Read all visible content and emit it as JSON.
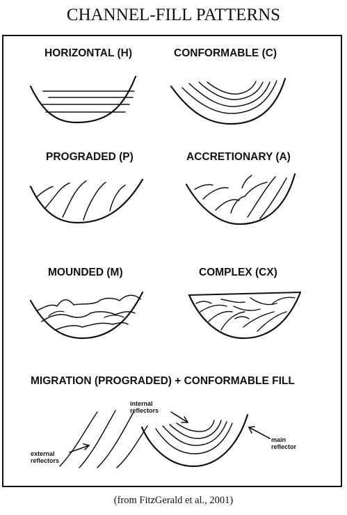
{
  "title": "CHANNEL-FILL PATTERNS",
  "patterns": [
    {
      "label": "HORIZONTAL (H)"
    },
    {
      "label": "CONFORMABLE (C)"
    },
    {
      "label": "PROGRADED (P)"
    },
    {
      "label": "ACCRETIONARY (A)"
    },
    {
      "label": "MOUNDED (M)"
    },
    {
      "label": "COMPLEX (CX)"
    }
  ],
  "migration": {
    "label": "MIGRATION (PROGRADED) + CONFORMABLE FILL",
    "internal": "internal reflectors",
    "external": "external reflectors",
    "main": "main reflector"
  },
  "credit": "(from FitzGerald et al., 2001)"
}
